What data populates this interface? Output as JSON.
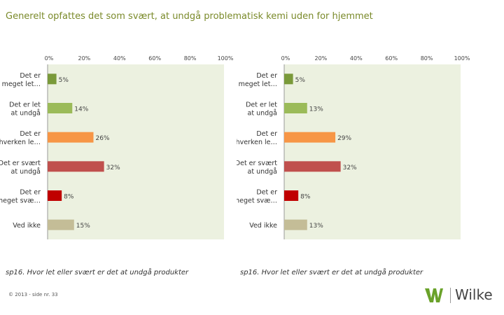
{
  "title": "Generelt opfattes det som svært, at undgå problematisk kemi uden for hjemmet",
  "footer": "© 2013 - side nr. 33",
  "logo": {
    "icon": "wilke-w-icon",
    "text": "Wilke"
  },
  "colors": {
    "plot_bg": "#ecf1e0",
    "title": "#7a8a2a",
    "bars": [
      "#7a9a3a",
      "#9bbb59",
      "#f79646",
      "#c0504d",
      "#c00000",
      "#c4bd97"
    ]
  },
  "chart_data": [
    {
      "type": "bar",
      "orientation": "horizontal",
      "categories": [
        "Det er meget let…",
        "Det er let at undgå",
        "Det er hverken le…",
        "Det er svært at undgå",
        "Det er meget svæ…",
        "Ved ikke"
      ],
      "values": [
        5,
        14,
        26,
        32,
        8,
        15
      ],
      "data_labels": [
        "5%",
        "14%",
        "26%",
        "32%",
        "8%",
        "15%"
      ],
      "xlim": [
        0,
        100
      ],
      "xticks": [
        "0%",
        "20%",
        "40%",
        "60%",
        "80%",
        "100%"
      ],
      "question": "sp16. Hvor let eller svært er det at undgå produkter"
    },
    {
      "type": "bar",
      "orientation": "horizontal",
      "categories": [
        "Det er meget let…",
        "Det er let at undgå",
        "Det er hverken le…",
        "Det er svært at undgå",
        "Det er meget svæ…",
        "Ved ikke"
      ],
      "values": [
        5,
        13,
        29,
        32,
        8,
        13
      ],
      "data_labels": [
        "5%",
        "13%",
        "29%",
        "32%",
        "8%",
        "13%"
      ],
      "xlim": [
        0,
        100
      ],
      "xticks": [
        "0%",
        "20%",
        "40%",
        "60%",
        "80%",
        "100%"
      ],
      "question": "sp16. Hvor let eller svært er det at undgå produkter"
    }
  ]
}
